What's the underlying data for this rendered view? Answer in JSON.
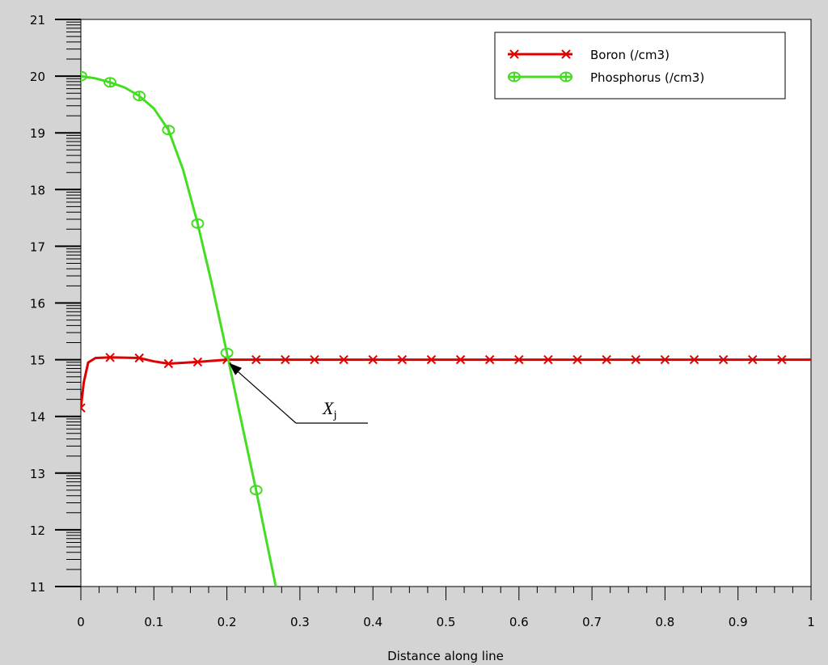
{
  "chart_data": {
    "type": "line",
    "title": "",
    "xlabel": "Distance along line",
    "ylabel": "",
    "xlim": [
      0,
      1
    ],
    "ylim": [
      11,
      21
    ],
    "x_ticks": [
      "0",
      "0.1",
      "0.2",
      "0.3",
      "0.4",
      "0.5",
      "0.6",
      "0.7",
      "0.8",
      "0.9",
      "1"
    ],
    "y_ticks": [
      "11",
      "12",
      "13",
      "14",
      "15",
      "16",
      "17",
      "18",
      "19",
      "20",
      "21"
    ],
    "grid": false,
    "legend_position": "top-right",
    "series": [
      {
        "name": "Boron (/cm3)",
        "color": "#e00000",
        "marker": "x",
        "line": [
          [
            0,
            14.15
          ],
          [
            0.004,
            14.6
          ],
          [
            0.01,
            14.95
          ],
          [
            0.02,
            15.03
          ],
          [
            0.04,
            15.04
          ],
          [
            0.08,
            15.03
          ],
          [
            0.1,
            14.97
          ],
          [
            0.12,
            14.93
          ],
          [
            0.16,
            14.96
          ],
          [
            0.2,
            15.0
          ],
          [
            0.24,
            15.0
          ],
          [
            0.3,
            15.0
          ],
          [
            0.5,
            15.0
          ],
          [
            0.7,
            15.0
          ],
          [
            0.9,
            15.0
          ],
          [
            1.0,
            15.0
          ]
        ],
        "markers": [
          [
            0,
            14.15
          ],
          [
            0.04,
            15.04
          ],
          [
            0.08,
            15.03
          ],
          [
            0.12,
            14.93
          ],
          [
            0.16,
            14.96
          ],
          [
            0.2,
            15.0
          ],
          [
            0.24,
            15.0
          ],
          [
            0.28,
            15.0
          ],
          [
            0.32,
            15.0
          ],
          [
            0.36,
            15.0
          ],
          [
            0.4,
            15.0
          ],
          [
            0.44,
            15.0
          ],
          [
            0.48,
            15.0
          ],
          [
            0.52,
            15.0
          ],
          [
            0.56,
            15.0
          ],
          [
            0.6,
            15.0
          ],
          [
            0.64,
            15.0
          ],
          [
            0.68,
            15.0
          ],
          [
            0.72,
            15.0
          ],
          [
            0.76,
            15.0
          ],
          [
            0.8,
            15.0
          ],
          [
            0.84,
            15.0
          ],
          [
            0.88,
            15.0
          ],
          [
            0.92,
            15.0
          ],
          [
            0.96,
            15.0
          ]
        ]
      },
      {
        "name": "Phosphorus (/cm3)",
        "color": "#44dd22",
        "marker": "diamond-cross",
        "line": [
          [
            0,
            20.0
          ],
          [
            0.02,
            19.96
          ],
          [
            0.04,
            19.89
          ],
          [
            0.06,
            19.8
          ],
          [
            0.08,
            19.65
          ],
          [
            0.1,
            19.43
          ],
          [
            0.12,
            19.05
          ],
          [
            0.14,
            18.35
          ],
          [
            0.16,
            17.4
          ],
          [
            0.18,
            16.3
          ],
          [
            0.2,
            15.12
          ],
          [
            0.22,
            13.9
          ],
          [
            0.24,
            12.7
          ],
          [
            0.267,
            11.0
          ]
        ],
        "markers": [
          [
            0,
            20.0
          ],
          [
            0.04,
            19.89
          ],
          [
            0.08,
            19.65
          ],
          [
            0.12,
            19.05
          ],
          [
            0.16,
            17.4
          ],
          [
            0.2,
            15.12
          ],
          [
            0.24,
            12.7
          ]
        ]
      }
    ],
    "annotations": [
      {
        "text": "X",
        "subscript": "j",
        "points_to": [
          0.205,
          15.0
        ]
      }
    ]
  }
}
